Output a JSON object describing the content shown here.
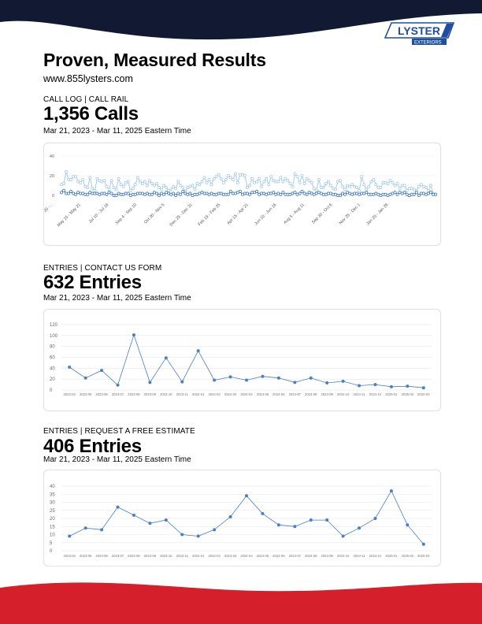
{
  "header": {
    "title": "Proven, Measured Results",
    "website": "www.855lysters.com",
    "logo": {
      "word1": "LYSTER",
      "word2": "EXTERIORS",
      "color": "#1f4e9e"
    }
  },
  "colors": {
    "navy": "#121a33",
    "red": "#d51f2a",
    "chart_dark": "#2f6cb5",
    "chart_light": "#9cc6e8",
    "chart_line": "#4a7fc1"
  },
  "sections": [
    {
      "label": "CALL LOG | CALL RAIL",
      "big": "1,356 Calls",
      "range": "Mar 21, 2023 - Mar 11, 2025 Eastern Time"
    },
    {
      "label": "ENTRIES | CONTACT US FORM",
      "big": "632 Entries",
      "range": "Mar 21, 2023 - Mar 11, 2025 Eastern Time"
    },
    {
      "label": "ENTRIES | REQUEST A FREE ESTIMATE",
      "big": "406 Entries",
      "range": "Mar 21, 2023 - Mar 11, 2025 Eastern Time"
    }
  ],
  "chart_data": [
    {
      "type": "line",
      "title": "",
      "ylim": [
        0,
        40
      ],
      "y_ticks": [
        0,
        20,
        40
      ],
      "x_tick_labels": [
        "Mar 20 -...",
        "May 15 - May 21",
        "Jul 10 - Jul 16",
        "Sep 4 - Sep 10",
        "Oct 30 - Nov 5",
        "Dec 25 - Dec 31",
        "Feb 19 - Feb 25",
        "Apr 15 - Apr 21",
        "Jun 10 - Jun 16",
        "Aug 5 - Aug 11",
        "Sep 30 - Oct 6",
        "Nov 25 - Dec 1",
        "Jan 20 - Jan 26"
      ],
      "grid": true,
      "series": [
        {
          "values": [
            11,
            12,
            24,
            16,
            16,
            19,
            19,
            14,
            13,
            16,
            9,
            8,
            18,
            7,
            5,
            17,
            15,
            14,
            15,
            9,
            6,
            15,
            8,
            6,
            17,
            11,
            9,
            13,
            14,
            5,
            7,
            11,
            18,
            14,
            12,
            14,
            10,
            15,
            12,
            10,
            12,
            8,
            6,
            10,
            8,
            5,
            6,
            9,
            7,
            14,
            10,
            8,
            4,
            8,
            9,
            10,
            6,
            12,
            11,
            14,
            18,
            13,
            16,
            11,
            17,
            19,
            21,
            17,
            13,
            16,
            20,
            18,
            16,
            22,
            13,
            21,
            21,
            20,
            8,
            10,
            17,
            13,
            14,
            17,
            9,
            14,
            17,
            11,
            19,
            15,
            14,
            14,
            18,
            14,
            17,
            15,
            12,
            9,
            22,
            19,
            13,
            20,
            12,
            17,
            15,
            13,
            7,
            5,
            16,
            8,
            8,
            12,
            14,
            10,
            7,
            6,
            14,
            15,
            9,
            6,
            10,
            9,
            11,
            9,
            8,
            5,
            19,
            11,
            6,
            9,
            14,
            16,
            11,
            8,
            8,
            13,
            13,
            12,
            15,
            13,
            10,
            12,
            7,
            10,
            10,
            5,
            7,
            7,
            6,
            5,
            9,
            11,
            9,
            8,
            5,
            10,
            2,
            1
          ]
        },
        {
          "values": [
            3,
            5,
            2,
            2,
            4,
            2,
            1,
            3,
            2,
            2,
            1,
            1,
            3,
            2,
            2,
            2,
            1,
            2,
            2,
            1,
            3,
            2,
            0,
            0,
            2,
            1,
            1,
            2,
            2,
            0,
            1,
            1,
            2,
            2,
            2,
            1,
            2,
            1,
            1,
            3,
            2,
            0,
            2,
            1,
            3,
            2,
            1,
            2,
            0,
            2,
            1,
            4,
            2,
            1,
            2,
            0,
            1,
            1,
            2,
            3,
            2,
            2,
            1,
            2,
            1,
            1,
            2,
            2,
            1,
            1,
            1,
            4,
            2,
            2,
            3,
            4,
            1,
            2,
            2,
            1,
            3,
            3,
            4,
            1,
            2,
            2,
            1,
            2,
            2,
            3,
            1,
            2,
            1,
            3,
            1,
            1,
            1,
            2,
            3,
            1,
            2,
            4,
            2,
            1,
            3,
            2,
            1,
            2,
            3,
            2,
            1,
            1,
            2,
            2,
            1,
            1,
            0,
            0,
            2,
            1,
            3,
            2,
            1,
            2,
            2,
            1,
            2,
            2,
            3,
            1,
            1,
            1,
            2,
            1,
            0,
            1,
            1,
            0,
            1,
            2,
            3,
            1,
            3,
            2,
            3,
            1,
            0,
            1,
            1,
            3,
            0,
            2,
            2,
            1,
            2,
            3,
            1,
            1
          ]
        }
      ]
    },
    {
      "type": "line",
      "title": "",
      "ylim": [
        0,
        120
      ],
      "y_ticks": [
        0,
        20,
        40,
        60,
        80,
        100,
        120
      ],
      "categories": [
        "2023-04",
        "2023-05",
        "2023-06",
        "2023-07",
        "2023-08",
        "2023-09",
        "2023-10",
        "2023-11",
        "2024-01",
        "2024-02",
        "2024-03",
        "2024-04",
        "2024-05",
        "2024-06",
        "2024-07",
        "2024-08",
        "2024-09",
        "2024-10",
        "2024-11",
        "2024-12",
        "2025-01",
        "2025-02",
        "2025-03"
      ],
      "grid": true,
      "series": [
        {
          "values": [
            42,
            22,
            36,
            9,
            101,
            14,
            59,
            15,
            72,
            18,
            24,
            18,
            25,
            22,
            14,
            22,
            13,
            16,
            8,
            10,
            6,
            7,
            4
          ]
        }
      ]
    },
    {
      "type": "line",
      "title": "",
      "ylim": [
        0,
        40
      ],
      "y_ticks": [
        0,
        5,
        10,
        15,
        20,
        25,
        30,
        35,
        40
      ],
      "categories": [
        "2023-04",
        "2023-05",
        "2023-06",
        "2023-07",
        "2023-08",
        "2023-09",
        "2023-10",
        "2023-11",
        "2024-01",
        "2024-02",
        "2024-03",
        "2024-04",
        "2024-05",
        "2024-06",
        "2024-07",
        "2024-08",
        "2024-09",
        "2024-10",
        "2024-11",
        "2024-12",
        "2025-01",
        "2025-02",
        "2025-03"
      ],
      "grid": true,
      "series": [
        {
          "values": [
            9,
            14,
            13,
            27,
            22,
            17,
            19,
            10,
            9,
            13,
            21,
            34,
            23,
            16,
            15,
            19,
            19,
            9,
            14,
            20,
            37,
            16,
            4
          ]
        }
      ]
    }
  ]
}
